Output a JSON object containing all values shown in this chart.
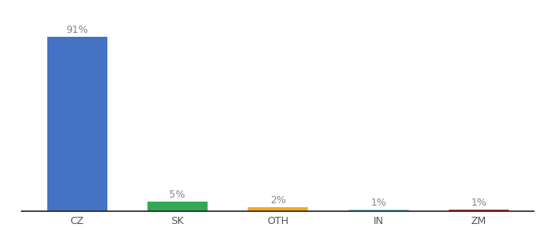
{
  "categories": [
    "CZ",
    "SK",
    "OTH",
    "IN",
    "ZM"
  ],
  "values": [
    91,
    5,
    2,
    1,
    1
  ],
  "bar_colors": [
    "#4472c4",
    "#33a853",
    "#f5a623",
    "#7ec8e3",
    "#c0392b"
  ],
  "labels": [
    "91%",
    "5%",
    "2%",
    "1%",
    "1%"
  ],
  "ylim": [
    0,
    100
  ],
  "background_color": "#ffffff",
  "label_fontsize": 9,
  "tick_fontsize": 9,
  "bar_width": 0.6,
  "label_color": "#888888",
  "tick_color": "#555555",
  "spine_color": "#222222"
}
